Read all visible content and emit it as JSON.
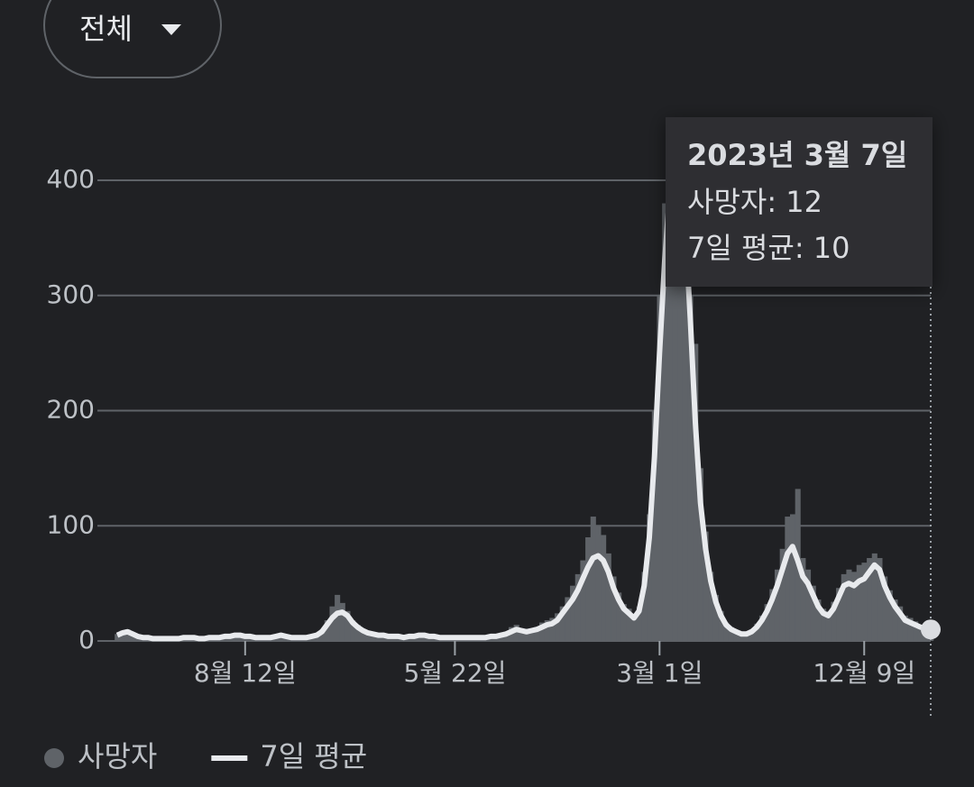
{
  "dropdown": {
    "label": "전체"
  },
  "chart_data": {
    "type": "combo",
    "categories": [
      null,
      null,
      null,
      null,
      null,
      null,
      null,
      null,
      null,
      null,
      null,
      null,
      null,
      null,
      null,
      null,
      null,
      null,
      null,
      null,
      null,
      null,
      null,
      null,
      null,
      "8월 12일",
      null,
      null,
      null,
      null,
      null,
      null,
      null,
      null,
      null,
      null,
      null,
      null,
      null,
      null,
      null,
      null,
      null,
      null,
      null,
      null,
      null,
      null,
      null,
      null,
      null,
      null,
      null,
      null,
      null,
      null,
      null,
      null,
      null,
      null,
      null,
      null,
      null,
      null,
      null,
      null,
      "5월 22일",
      null,
      null,
      null,
      null,
      null,
      null,
      null,
      null,
      null,
      null,
      null,
      null,
      null,
      null,
      null,
      null,
      null,
      null,
      null,
      null,
      null,
      null,
      null,
      null,
      null,
      null,
      null,
      null,
      null,
      null,
      null,
      null,
      null,
      null,
      null,
      null,
      null,
      null,
      null,
      "3월 1일",
      null,
      null,
      null,
      null,
      null,
      null,
      null,
      null,
      null,
      null,
      null,
      null,
      null,
      null,
      null,
      null,
      null,
      null,
      null,
      null,
      null,
      null,
      null,
      null,
      null,
      null,
      null,
      null,
      null,
      null,
      null,
      null,
      null,
      null,
      null,
      null,
      null,
      null,
      null,
      "12월 9일",
      null,
      null,
      null,
      null,
      null,
      null,
      null,
      null,
      null,
      null,
      null,
      null,
      null
    ],
    "series": [
      {
        "name": "사망자",
        "kind": "bar",
        "color": "#5f6368",
        "values": [
          6,
          9,
          10,
          7,
          5,
          3,
          4,
          2,
          3,
          2,
          3,
          2,
          3,
          4,
          3,
          4,
          2,
          3,
          4,
          3,
          4,
          5,
          5,
          6,
          6,
          5,
          5,
          4,
          3,
          4,
          4,
          5,
          6,
          5,
          4,
          3,
          4,
          3,
          5,
          6,
          10,
          18,
          30,
          40,
          33,
          26,
          18,
          14,
          10,
          8,
          7,
          6,
          6,
          5,
          5,
          5,
          4,
          5,
          5,
          6,
          6,
          5,
          5,
          4,
          4,
          4,
          4,
          3,
          4,
          4,
          4,
          3,
          4,
          5,
          5,
          6,
          8,
          12,
          14,
          11,
          10,
          11,
          12,
          16,
          18,
          20,
          24,
          30,
          38,
          48,
          58,
          70,
          90,
          108,
          100,
          92,
          76,
          56,
          42,
          32,
          28,
          22,
          30,
          60,
          110,
          200,
          300,
          380,
          420,
          440,
          430,
          390,
          300,
          258,
          150,
          95,
          60,
          40,
          26,
          16,
          12,
          9,
          7,
          7,
          10,
          15,
          22,
          32,
          45,
          62,
          80,
          108,
          110,
          132,
          72,
          62,
          48,
          36,
          28,
          26,
          34,
          46,
          58,
          62,
          60,
          66,
          68,
          72,
          76,
          72,
          56,
          44,
          36,
          30,
          22,
          20,
          17,
          14,
          13,
          12
        ]
      },
      {
        "name": "7일 평균",
        "kind": "line",
        "color": "#e8eaed",
        "values": [
          5,
          7,
          8,
          6,
          4,
          3,
          3,
          2,
          2,
          2,
          2,
          2,
          2,
          3,
          3,
          3,
          2,
          2,
          3,
          3,
          3,
          4,
          4,
          5,
          5,
          4,
          4,
          3,
          3,
          3,
          3,
          4,
          5,
          4,
          3,
          3,
          3,
          3,
          4,
          5,
          8,
          14,
          20,
          24,
          25,
          22,
          16,
          12,
          9,
          7,
          6,
          5,
          5,
          4,
          4,
          4,
          3,
          4,
          4,
          5,
          5,
          4,
          4,
          3,
          3,
          3,
          3,
          3,
          3,
          3,
          3,
          3,
          3,
          4,
          4,
          5,
          6,
          8,
          10,
          9,
          8,
          9,
          10,
          12,
          14,
          15,
          18,
          24,
          30,
          36,
          44,
          54,
          64,
          72,
          74,
          70,
          60,
          46,
          36,
          28,
          24,
          20,
          26,
          48,
          90,
          160,
          250,
          330,
          390,
          405,
          400,
          360,
          280,
          190,
          120,
          80,
          52,
          34,
          22,
          14,
          10,
          8,
          6,
          6,
          8,
          12,
          18,
          26,
          36,
          48,
          62,
          76,
          82,
          70,
          56,
          50,
          40,
          30,
          24,
          22,
          28,
          38,
          48,
          50,
          48,
          52,
          54,
          60,
          66,
          62,
          48,
          38,
          30,
          24,
          18,
          16,
          14,
          12,
          11,
          10
        ]
      }
    ],
    "ylim": [
      0,
      400
    ],
    "yticks": [
      0,
      100,
      200,
      300,
      400
    ],
    "grid": true,
    "tooltip": {
      "title": "2023년 3월 7일",
      "lines": [
        "사망자: 12",
        "7일 평균: 10"
      ]
    }
  }
}
